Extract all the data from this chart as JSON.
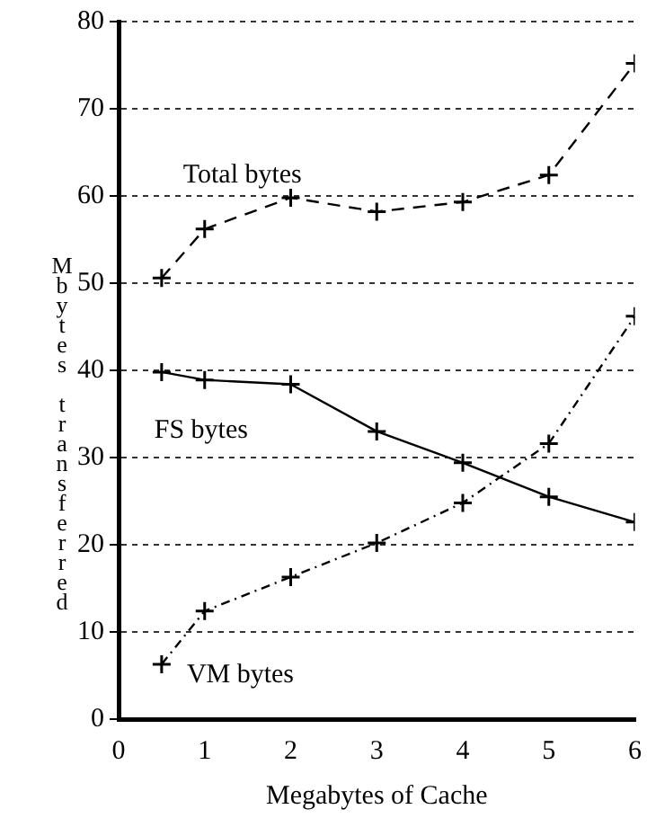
{
  "chart_data": {
    "type": "line",
    "xlabel": "Megabytes of Cache",
    "ylabel": "Mbytes transferred",
    "x": [
      0.5,
      1,
      2,
      3,
      4,
      5,
      6
    ],
    "series": [
      {
        "name": "Total bytes",
        "color": "#000000",
        "line_style": "dashed",
        "values": [
          50.6,
          56.2,
          59.8,
          58.2,
          59.3,
          62.4,
          75.2
        ]
      },
      {
        "name": "FS bytes",
        "color": "#000000",
        "line_style": "solid",
        "values": [
          39.8,
          38.9,
          38.4,
          33,
          29.4,
          25.5,
          22.6
        ]
      },
      {
        "name": "VM bytes",
        "color": "#000000",
        "line_style": "dotted",
        "values": [
          6.3,
          12.4,
          16.3,
          20.2,
          24.8,
          31.6,
          46.2
        ]
      }
    ],
    "xlim": [
      0,
      6
    ],
    "xticks": [
      0,
      1,
      2,
      3,
      4,
      5,
      6
    ],
    "ylim": [
      0,
      80
    ],
    "yticks": [
      0,
      10,
      20,
      30,
      40,
      50,
      60,
      70,
      80
    ],
    "grid": "y",
    "marker": "cross",
    "legend": false
  }
}
